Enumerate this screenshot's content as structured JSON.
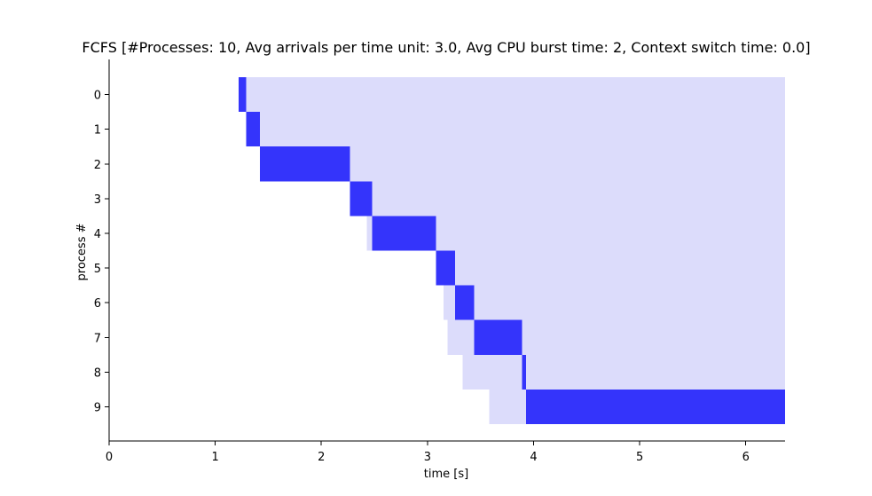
{
  "chart_data": {
    "type": "bar",
    "orientation": "horizontal-gantt",
    "title": "FCFS [#Processes: 10, Avg arrivals per time unit: 3.0, Avg CPU burst time: 2, Context switch time: 0.0]",
    "xlabel": "time [s]",
    "ylabel": "process #",
    "xlim": [
      0,
      6.37
    ],
    "x_ticks": [
      0,
      1,
      2,
      3,
      4,
      5,
      6
    ],
    "y_ticks": [
      0,
      1,
      2,
      3,
      4,
      5,
      6,
      7,
      8,
      9
    ],
    "grid": false,
    "colors": {
      "waiting": "#dcdcfb",
      "running": "#3434fb"
    },
    "processes": [
      {
        "id": 0,
        "arrival": 1.22,
        "start": 1.22,
        "end": 1.29
      },
      {
        "id": 1,
        "arrival": 1.29,
        "start": 1.29,
        "end": 1.42
      },
      {
        "id": 2,
        "arrival": 1.42,
        "start": 1.42,
        "end": 2.27
      },
      {
        "id": 3,
        "arrival": 2.27,
        "start": 2.27,
        "end": 2.48
      },
      {
        "id": 4,
        "arrival": 2.43,
        "start": 2.48,
        "end": 3.08
      },
      {
        "id": 5,
        "arrival": 3.08,
        "start": 3.08,
        "end": 3.26
      },
      {
        "id": 6,
        "arrival": 3.15,
        "start": 3.26,
        "end": 3.44
      },
      {
        "id": 7,
        "arrival": 3.19,
        "start": 3.44,
        "end": 3.89
      },
      {
        "id": 8,
        "arrival": 3.33,
        "start": 3.89,
        "end": 3.93
      },
      {
        "id": 9,
        "arrival": 3.58,
        "start": 3.93,
        "end": 6.37
      }
    ]
  }
}
